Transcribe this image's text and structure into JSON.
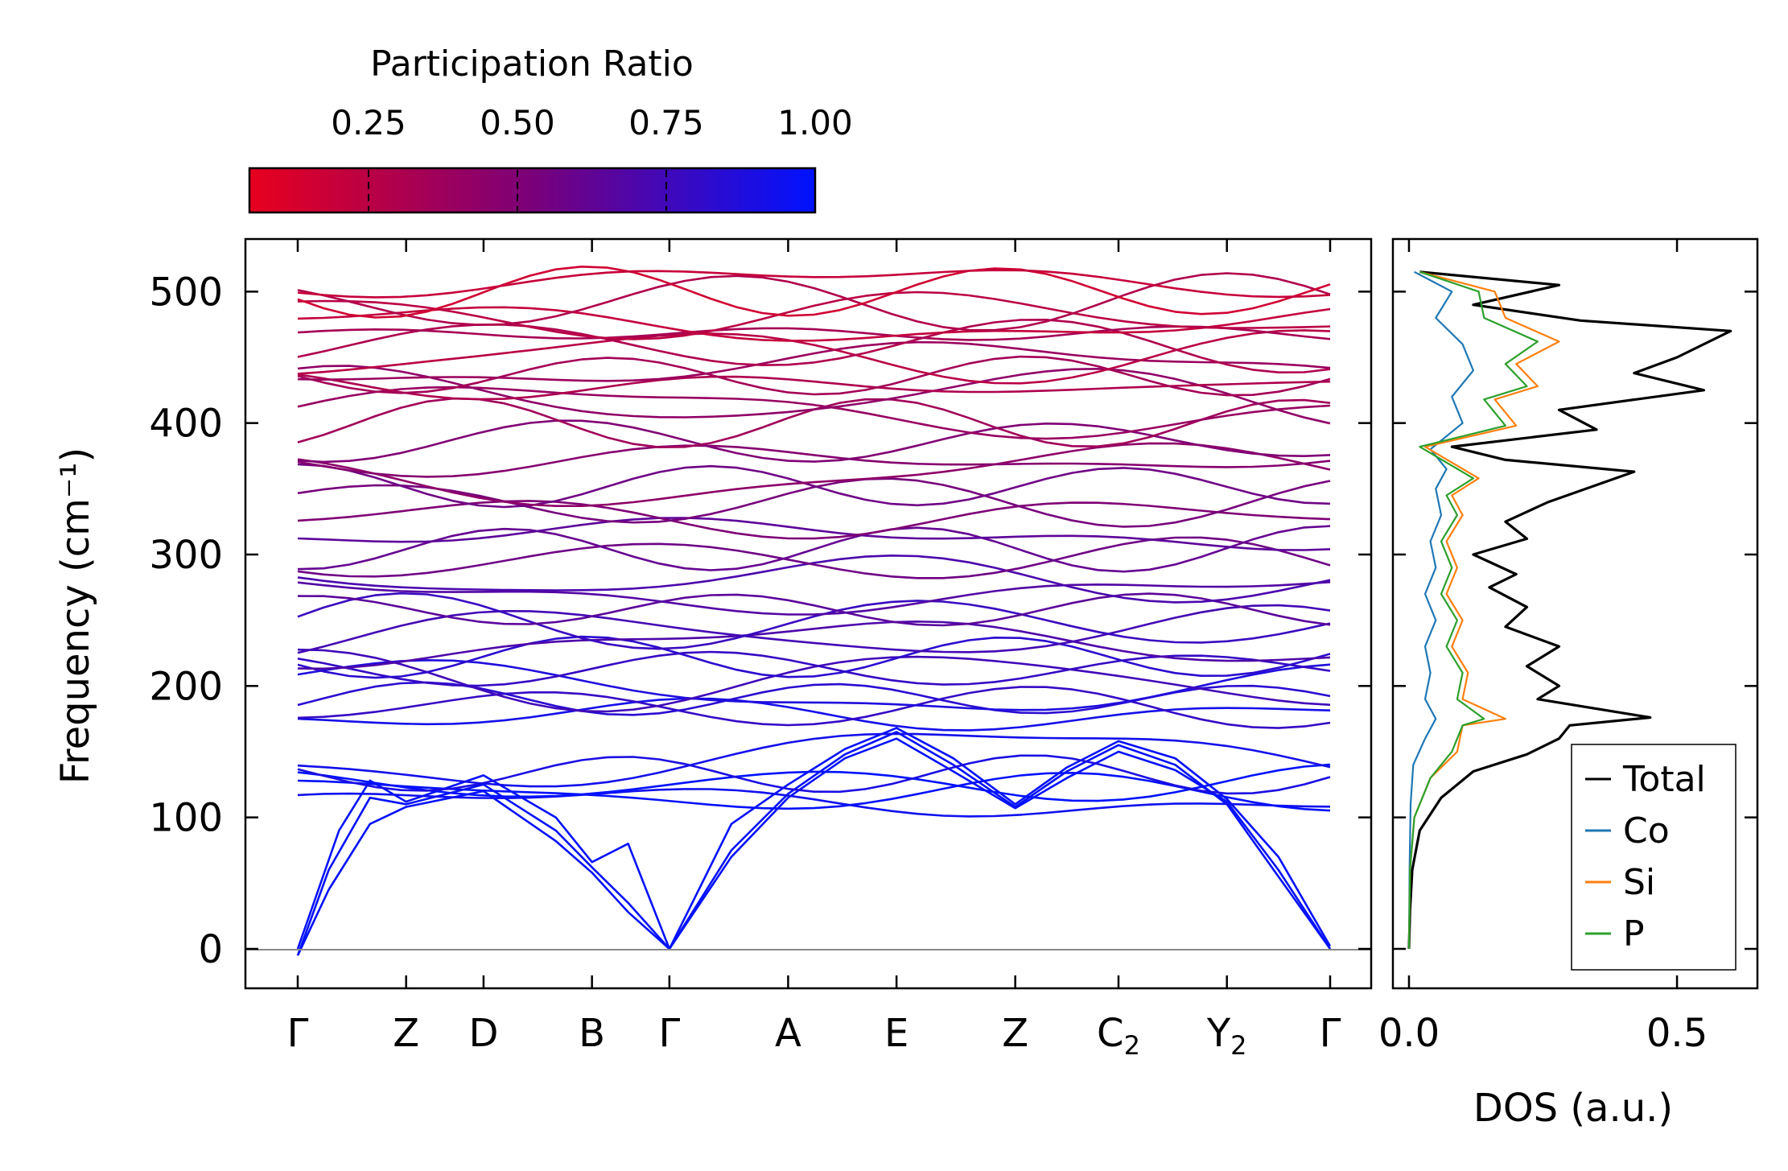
{
  "chart_data": [
    {
      "type": "line",
      "subtype": "phonon-band-structure",
      "ylabel": "Frequency (cm⁻¹)",
      "xlabel": "",
      "ylim": [
        -30,
        540
      ],
      "yticks": [
        0,
        100,
        200,
        300,
        400,
        500
      ],
      "kpoints": [
        {
          "label": "Γ",
          "base": "Γ",
          "sub": "",
          "x": 0.0
        },
        {
          "label": "Z",
          "base": "Z",
          "sub": "",
          "x": 0.105
        },
        {
          "label": "D",
          "base": "D",
          "sub": "",
          "x": 0.18
        },
        {
          "label": "B",
          "base": "B",
          "sub": "",
          "x": 0.285
        },
        {
          "label": "Γ",
          "base": "Γ",
          "sub": "",
          "x": 0.36
        },
        {
          "label": "A",
          "base": "A",
          "sub": "",
          "x": 0.475
        },
        {
          "label": "E",
          "base": "E",
          "sub": "",
          "x": 0.58
        },
        {
          "label": "Z",
          "base": "Z",
          "sub": "",
          "x": 0.695
        },
        {
          "label": "C₂",
          "base": "C",
          "sub": "2",
          "x": 0.795
        },
        {
          "label": "Y₂",
          "base": "Y",
          "sub": "2",
          "x": 0.9
        },
        {
          "label": "Γ",
          "base": "Γ",
          "sub": "",
          "x": 1.0
        }
      ],
      "acoustic_branches": [
        [
          [
            0,
            -5
          ],
          [
            0.03,
            60
          ],
          [
            0.07,
            115
          ],
          [
            0.105,
            110
          ],
          [
            0.18,
            125
          ],
          [
            0.25,
            90
          ],
          [
            0.285,
            62
          ],
          [
            0.32,
            35
          ],
          [
            0.36,
            0
          ],
          [
            0.42,
            75
          ],
          [
            0.475,
            118
          ],
          [
            0.53,
            148
          ],
          [
            0.58,
            165
          ],
          [
            0.635,
            140
          ],
          [
            0.695,
            108
          ],
          [
            0.745,
            135
          ],
          [
            0.795,
            155
          ],
          [
            0.85,
            140
          ],
          [
            0.9,
            110
          ],
          [
            0.95,
            55
          ],
          [
            1.0,
            0
          ]
        ],
        [
          [
            0,
            -5
          ],
          [
            0.03,
            45
          ],
          [
            0.07,
            95
          ],
          [
            0.105,
            108
          ],
          [
            0.18,
            120
          ],
          [
            0.25,
            82
          ],
          [
            0.285,
            58
          ],
          [
            0.32,
            28
          ],
          [
            0.36,
            0
          ],
          [
            0.42,
            70
          ],
          [
            0.475,
            115
          ],
          [
            0.53,
            145
          ],
          [
            0.58,
            160
          ],
          [
            0.635,
            135
          ],
          [
            0.695,
            107
          ],
          [
            0.745,
            130
          ],
          [
            0.795,
            150
          ],
          [
            0.85,
            136
          ],
          [
            0.9,
            112
          ],
          [
            0.95,
            60
          ],
          [
            1.0,
            0
          ]
        ],
        [
          [
            0,
            0
          ],
          [
            0.04,
            90
          ],
          [
            0.07,
            128
          ],
          [
            0.105,
            112
          ],
          [
            0.18,
            132
          ],
          [
            0.25,
            100
          ],
          [
            0.285,
            66
          ],
          [
            0.32,
            80
          ],
          [
            0.36,
            0
          ],
          [
            0.42,
            95
          ],
          [
            0.475,
            125
          ],
          [
            0.53,
            152
          ],
          [
            0.58,
            168
          ],
          [
            0.635,
            145
          ],
          [
            0.695,
            110
          ],
          [
            0.745,
            138
          ],
          [
            0.795,
            158
          ],
          [
            0.85,
            145
          ],
          [
            0.9,
            114
          ],
          [
            0.95,
            70
          ],
          [
            1.0,
            2
          ]
        ]
      ],
      "optical_branches_cm1": [
        112,
        118,
        125,
        133,
        146,
        178,
        184,
        190,
        198,
        205,
        213,
        222,
        232,
        240,
        248,
        258,
        270,
        282,
        296,
        304,
        315,
        328,
        340,
        352,
        360,
        372,
        386,
        400,
        410,
        420,
        428,
        436,
        444,
        452,
        460,
        468,
        475,
        482,
        492,
        500,
        508
      ],
      "colorbar": {
        "title": "Participation Ratio",
        "ticks": [
          0.25,
          0.5,
          0.75,
          1.0
        ],
        "tick_labels": [
          "0.25",
          "0.50",
          "0.75",
          "1.00"
        ],
        "range": [
          0.05,
          1.0
        ],
        "color_low": "#e8001e",
        "color_mid": "#7a0079",
        "color_high": "#0012ff"
      }
    },
    {
      "type": "line",
      "subtype": "density-of-states",
      "xlabel": "DOS (a.u.)",
      "xlim": [
        -0.03,
        0.65
      ],
      "xticks": [
        0.0,
        0.5
      ],
      "xtick_labels": [
        "0.0",
        "0.5"
      ],
      "ylim": [
        -30,
        540
      ],
      "legend_position": "lower-right",
      "series": [
        {
          "name": "Total",
          "color": "#000000",
          "points": [
            [
              0,
              0
            ],
            [
              0.002,
              30
            ],
            [
              0.006,
              60
            ],
            [
              0.02,
              90
            ],
            [
              0.06,
              115
            ],
            [
              0.12,
              135
            ],
            [
              0.22,
              148
            ],
            [
              0.28,
              160
            ],
            [
              0.3,
              170
            ],
            [
              0.45,
              176
            ],
            [
              0.24,
              190
            ],
            [
              0.28,
              200
            ],
            [
              0.22,
              215
            ],
            [
              0.28,
              230
            ],
            [
              0.18,
              245
            ],
            [
              0.22,
              260
            ],
            [
              0.15,
              275
            ],
            [
              0.2,
              285
            ],
            [
              0.12,
              300
            ],
            [
              0.22,
              312
            ],
            [
              0.18,
              325
            ],
            [
              0.26,
              340
            ],
            [
              0.42,
              363
            ],
            [
              0.18,
              372
            ],
            [
              0.08,
              382
            ],
            [
              0.35,
              395
            ],
            [
              0.28,
              410
            ],
            [
              0.55,
              425
            ],
            [
              0.42,
              438
            ],
            [
              0.5,
              450
            ],
            [
              0.6,
              470
            ],
            [
              0.32,
              478
            ],
            [
              0.12,
              490
            ],
            [
              0.28,
              505
            ],
            [
              0.02,
              515
            ]
          ]
        },
        {
          "name": "Co",
          "color": "#1f77b4",
          "points": [
            [
              0,
              0
            ],
            [
              0.001,
              60
            ],
            [
              0.003,
              110
            ],
            [
              0.008,
              140
            ],
            [
              0.03,
              160
            ],
            [
              0.05,
              175
            ],
            [
              0.03,
              190
            ],
            [
              0.04,
              210
            ],
            [
              0.03,
              230
            ],
            [
              0.05,
              250
            ],
            [
              0.03,
              270
            ],
            [
              0.05,
              290
            ],
            [
              0.04,
              310
            ],
            [
              0.06,
              330
            ],
            [
              0.05,
              350
            ],
            [
              0.07,
              365
            ],
            [
              0.04,
              380
            ],
            [
              0.1,
              400
            ],
            [
              0.08,
              420
            ],
            [
              0.12,
              440
            ],
            [
              0.1,
              460
            ],
            [
              0.05,
              480
            ],
            [
              0.08,
              500
            ],
            [
              0.01,
              515
            ]
          ]
        },
        {
          "name": "Si",
          "color": "#ff7f0e",
          "points": [
            [
              0,
              0
            ],
            [
              0.002,
              60
            ],
            [
              0.01,
              100
            ],
            [
              0.04,
              130
            ],
            [
              0.09,
              150
            ],
            [
              0.1,
              170
            ],
            [
              0.18,
              175
            ],
            [
              0.1,
              190
            ],
            [
              0.11,
              210
            ],
            [
              0.08,
              230
            ],
            [
              0.1,
              250
            ],
            [
              0.07,
              270
            ],
            [
              0.09,
              290
            ],
            [
              0.07,
              310
            ],
            [
              0.1,
              330
            ],
            [
              0.08,
              345
            ],
            [
              0.13,
              358
            ],
            [
              0.03,
              382
            ],
            [
              0.2,
              398
            ],
            [
              0.16,
              418
            ],
            [
              0.24,
              428
            ],
            [
              0.2,
              445
            ],
            [
              0.28,
              462
            ],
            [
              0.18,
              480
            ],
            [
              0.16,
              500
            ],
            [
              0.02,
              515
            ]
          ]
        },
        {
          "name": "P",
          "color": "#2ca02c",
          "points": [
            [
              0,
              0
            ],
            [
              0.002,
              60
            ],
            [
              0.01,
              100
            ],
            [
              0.04,
              130
            ],
            [
              0.08,
              150
            ],
            [
              0.1,
              170
            ],
            [
              0.14,
              175
            ],
            [
              0.09,
              190
            ],
            [
              0.1,
              210
            ],
            [
              0.07,
              230
            ],
            [
              0.09,
              250
            ],
            [
              0.06,
              270
            ],
            [
              0.08,
              290
            ],
            [
              0.06,
              310
            ],
            [
              0.09,
              330
            ],
            [
              0.07,
              345
            ],
            [
              0.12,
              358
            ],
            [
              0.02,
              382
            ],
            [
              0.18,
              398
            ],
            [
              0.14,
              418
            ],
            [
              0.22,
              428
            ],
            [
              0.18,
              445
            ],
            [
              0.24,
              462
            ],
            [
              0.14,
              480
            ],
            [
              0.13,
              500
            ],
            [
              0.02,
              515
            ]
          ]
        }
      ]
    }
  ]
}
